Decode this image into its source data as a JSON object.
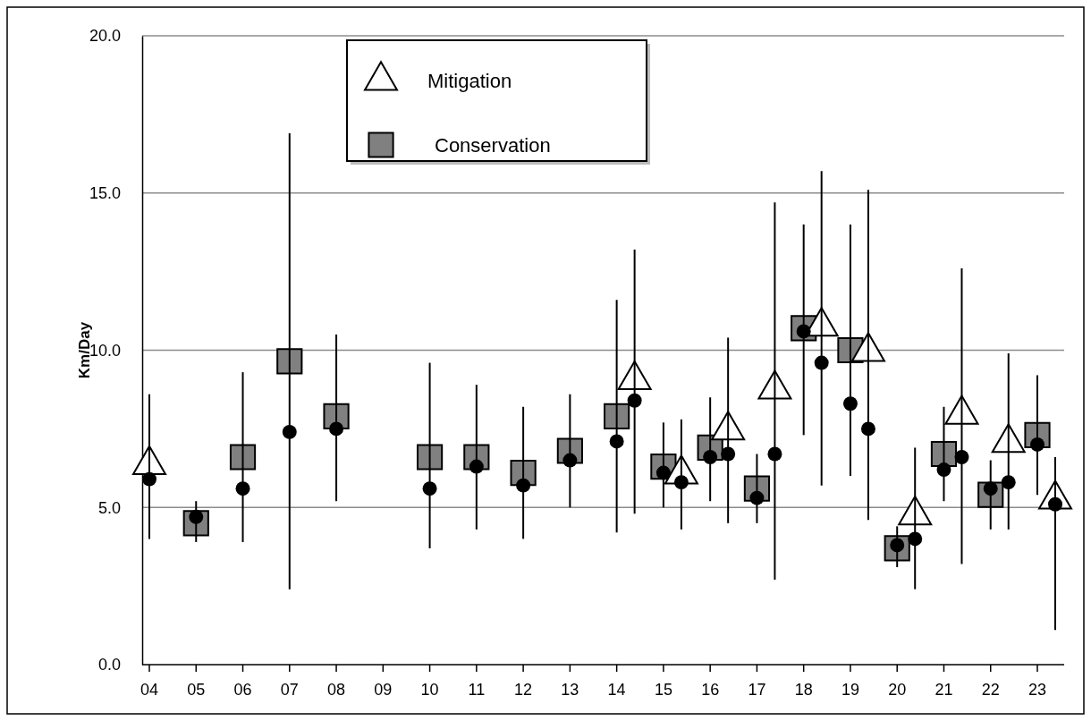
{
  "chart_data": {
    "type": "scatter",
    "ylabel": "Km/Day",
    "categories": [
      "04",
      "05",
      "06",
      "07",
      "08",
      "09",
      "10",
      "11",
      "12",
      "13",
      "14",
      "15",
      "16",
      "17",
      "18",
      "19",
      "20",
      "21",
      "22",
      "23"
    ],
    "ylim": [
      0,
      20
    ],
    "yticks": [
      {
        "value": 0,
        "label": "0.0"
      },
      {
        "value": 5,
        "label": "5.0"
      },
      {
        "value": 10,
        "label": "10.0"
      },
      {
        "value": 15,
        "label": "15.0"
      },
      {
        "value": 20,
        "label": "20.0"
      }
    ],
    "grid": "y",
    "legend": "top left",
    "series": [
      {
        "name": "Mitigation",
        "color": "#ffffff",
        "marker": "triangle",
        "values": [
          6.3,
          null,
          null,
          null,
          null,
          null,
          null,
          null,
          null,
          null,
          9.0,
          6.0,
          7.4,
          8.7,
          10.7,
          9.9,
          4.7,
          7.9,
          7.0,
          5.2
        ],
        "errors": [
          [
            4.0,
            8.6
          ],
          null,
          null,
          null,
          null,
          null,
          null,
          null,
          null,
          null,
          [
            4.8,
            13.2
          ],
          [
            4.3,
            7.8
          ],
          [
            4.5,
            10.4
          ],
          [
            2.7,
            14.7
          ],
          [
            5.7,
            15.7
          ],
          [
            4.6,
            15.1
          ],
          [
            2.4,
            6.9
          ],
          [
            3.2,
            12.6
          ],
          [
            4.3,
            9.9
          ],
          [
            1.1,
            6.6
          ]
        ]
      },
      {
        "name": "Conservation",
        "color": "#808080",
        "marker": "square",
        "values": [
          null,
          4.5,
          6.6,
          9.65,
          7.9,
          null,
          6.6,
          6.6,
          6.1,
          6.8,
          7.9,
          6.3,
          6.9,
          5.6,
          10.7,
          10.0,
          3.7,
          6.7,
          5.4,
          7.3
        ],
        "errors": [
          null,
          [
            3.9,
            5.2
          ],
          [
            3.9,
            9.3
          ],
          [
            2.4,
            16.9
          ],
          [
            5.2,
            10.5
          ],
          null,
          [
            3.7,
            9.6
          ],
          [
            4.3,
            8.9
          ],
          [
            4.0,
            8.2
          ],
          [
            5.0,
            8.6
          ],
          [
            4.2,
            11.6
          ],
          [
            5.0,
            7.7
          ],
          [
            5.2,
            8.5
          ],
          [
            4.5,
            6.7
          ],
          [
            7.3,
            14.0
          ],
          [
            6.0,
            14.0
          ],
          [
            3.1,
            4.4
          ],
          [
            5.2,
            8.2
          ],
          [
            4.3,
            6.5
          ],
          [
            5.4,
            9.2
          ]
        ]
      },
      {
        "color": "#000000",
        "marker": "circle",
        "values": [
          5.9,
          null,
          null,
          null,
          null,
          null,
          null,
          null,
          null,
          null,
          8.4,
          5.8,
          6.7,
          6.7,
          9.6,
          7.5,
          4.0,
          6.6,
          5.8,
          5.1
        ]
      },
      {
        "color": "#000000",
        "marker": "circle",
        "values": [
          null,
          4.7,
          5.6,
          7.4,
          7.5,
          null,
          5.6,
          6.3,
          5.7,
          6.5,
          7.1,
          6.1,
          6.6,
          5.3,
          10.6,
          8.3,
          3.8,
          6.2,
          5.6,
          7.0
        ]
      }
    ]
  }
}
